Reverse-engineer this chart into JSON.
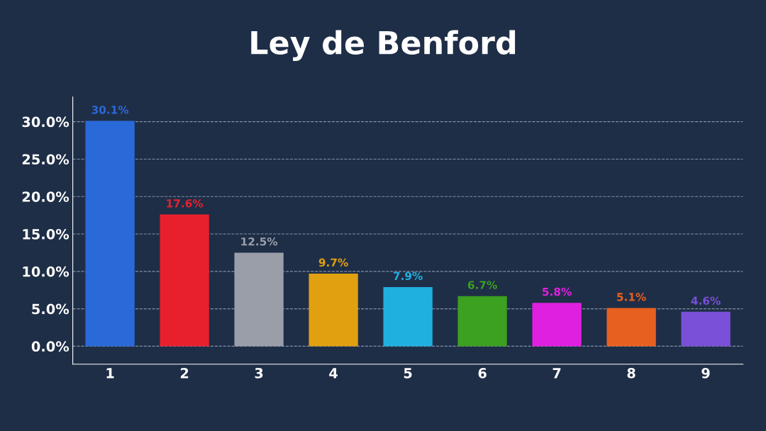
{
  "chart_data": {
    "type": "bar",
    "title": "Ley de Benford",
    "categories": [
      "1",
      "2",
      "3",
      "4",
      "5",
      "6",
      "7",
      "8",
      "9"
    ],
    "values": [
      30.1,
      17.6,
      12.5,
      9.7,
      7.9,
      6.7,
      5.8,
      5.1,
      4.6
    ],
    "colors": [
      "#2a6ad8",
      "#e8202e",
      "#9a9ea8",
      "#e0a010",
      "#20b0e0",
      "#3ca020",
      "#e020e0",
      "#e86020",
      "#7a50d8"
    ],
    "value_labels": [
      "30.1%",
      "17.6%",
      "12.5%",
      "9.7%",
      "7.9%",
      "6.7%",
      "5.8%",
      "5.1%",
      "4.6%"
    ],
    "ylim": [
      -2.4,
      33.3
    ],
    "yticks": [
      {
        "value": 0,
        "label": "0.0%"
      },
      {
        "value": 5,
        "label": "5.0%"
      },
      {
        "value": 10,
        "label": "10.0%"
      },
      {
        "value": 15,
        "label": "15.0%"
      },
      {
        "value": 20,
        "label": "20.0%"
      },
      {
        "value": 25,
        "label": "25.0%"
      },
      {
        "value": 30,
        "label": "30.0%"
      }
    ],
    "grid": "y",
    "line_style": "dashed"
  }
}
